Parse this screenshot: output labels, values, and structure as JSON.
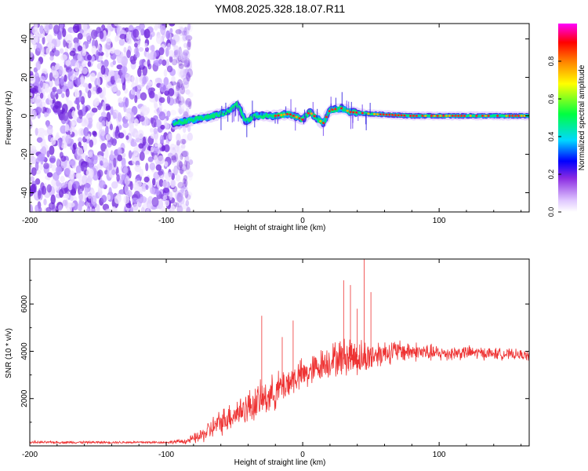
{
  "title": "YM08.2025.328.18.07.R11",
  "colors": {
    "line": "#ee3333",
    "ridge": "#ff2020",
    "colormap": [
      "#ffffff",
      "#e0c8ff",
      "#8a2be2",
      "#0000ff",
      "#00d8ff",
      "#00ff40",
      "#ffff00",
      "#ff8000",
      "#ff0000",
      "#ff00ff"
    ]
  },
  "chart_data": [
    {
      "type": "heatmap",
      "title": "YM08.2025.328.18.07.R11",
      "xlabel": "Height of straight line (km)",
      "ylabel": "Frequency (Hz)",
      "xlim": [
        -200,
        166
      ],
      "ylim": [
        -50,
        48
      ],
      "xticks": [
        -200,
        -100,
        0,
        100
      ],
      "yticks": [
        -40,
        -20,
        0,
        20,
        40
      ],
      "grid": false,
      "colorbar": {
        "label": "Normalized spectral amplitude",
        "range": [
          0,
          1
        ],
        "ticks": [
          "0.0",
          "0.2",
          "0.4",
          "0.6",
          "0.8"
        ]
      },
      "description_points": {
        "noise_region_x": [
          -200,
          -82
        ],
        "ridge_x": [
          -95,
          166
        ],
        "ridge_center_y": [
          [
            -95,
            -4
          ],
          [
            -80,
            -2
          ],
          [
            -65,
            0
          ],
          [
            -55,
            2
          ],
          [
            -48,
            6
          ],
          [
            -45,
            2
          ],
          [
            -42,
            -3
          ],
          [
            -35,
            0
          ],
          [
            -20,
            0
          ],
          [
            -10,
            1
          ],
          [
            0,
            -2
          ],
          [
            5,
            2
          ],
          [
            15,
            -4
          ],
          [
            20,
            3
          ],
          [
            28,
            4
          ],
          [
            35,
            2
          ],
          [
            50,
            1
          ],
          [
            80,
            0
          ],
          [
            166,
            0
          ]
        ]
      }
    },
    {
      "type": "line",
      "xlabel": "Height of straight line (km)",
      "ylabel": "SNR (10 * v/v)",
      "xlim": [
        -200,
        166
      ],
      "ylim": [
        0,
        7900
      ],
      "xticks": [
        -200,
        -100,
        0,
        100
      ],
      "yticks": [
        2000,
        4000,
        6000
      ],
      "grid": false,
      "series": [
        {
          "name": "SNR",
          "envelope_x": [
            -200,
            -150,
            -100,
            -85,
            -75,
            -65,
            -55,
            -45,
            -35,
            -25,
            -15,
            -5,
            5,
            15,
            25,
            35,
            45,
            55,
            65,
            80,
            100,
            120,
            140,
            160,
            166
          ],
          "envelope_mean": [
            150,
            150,
            150,
            200,
            400,
            800,
            1200,
            1500,
            1800,
            2100,
            2500,
            2900,
            3100,
            3500,
            3700,
            3800,
            3700,
            3900,
            4000,
            4000,
            3900,
            3950,
            3900,
            3850,
            3800
          ],
          "envelope_spread": [
            60,
            60,
            60,
            150,
            350,
            600,
            700,
            800,
            900,
            900,
            900,
            800,
            800,
            800,
            900,
            1000,
            900,
            700,
            600,
            500,
            400,
            350,
            300,
            250,
            250
          ],
          "spikes": [
            [
              -30,
              5500
            ],
            [
              -7,
              5300
            ],
            [
              30,
              7000
            ],
            [
              35,
              6800
            ],
            [
              40,
              5800
            ],
            [
              45,
              7900
            ],
            [
              50,
              6500
            ],
            [
              -15,
              4600
            ]
          ]
        }
      ]
    }
  ]
}
